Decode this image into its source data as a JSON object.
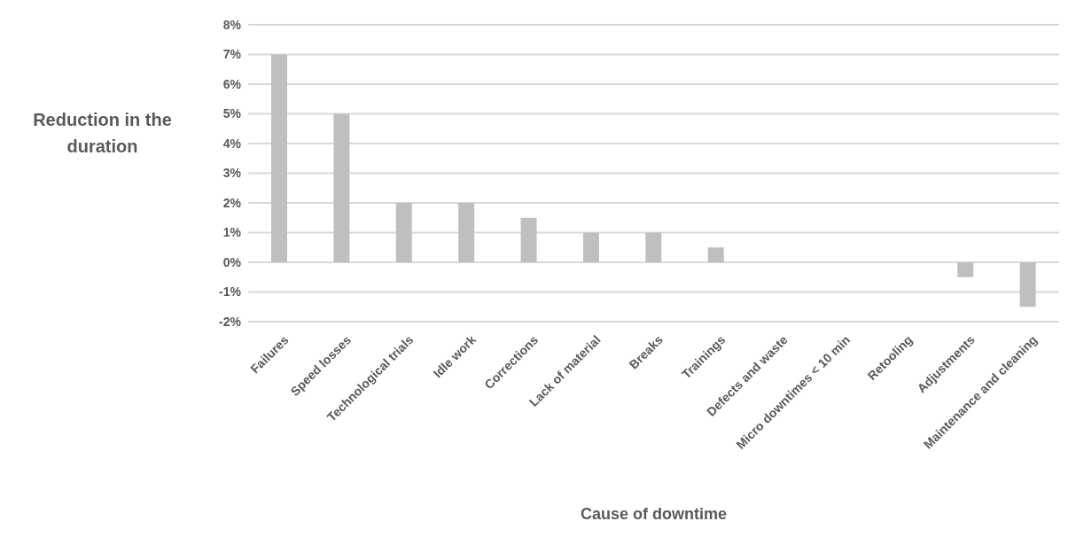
{
  "chart_data": {
    "type": "bar",
    "xlabel": "Cause of downtime",
    "ylabel": "Reduction in the duration",
    "categories": [
      "Failures",
      "Speed losses",
      "Technological trials",
      "Idle work",
      "Corrections",
      "Lack of material",
      "Breaks",
      "Trainings",
      "Defects and waste",
      "Micro downtimes < 10 min",
      "Retooling",
      "Adjustments",
      "Maintenance and cleaning"
    ],
    "values": [
      7,
      5,
      2,
      2,
      1.5,
      1,
      1,
      0.5,
      0,
      0,
      0,
      -0.5,
      -1.5
    ],
    "color": "#bfbfbf",
    "ylim": [
      -2,
      8
    ],
    "yticks": [
      {
        "value": -2,
        "label": "-2%"
      },
      {
        "value": -1,
        "label": "-1%"
      },
      {
        "value": 0,
        "label": "0%"
      },
      {
        "value": 1,
        "label": "1%"
      },
      {
        "value": 2,
        "label": "2%"
      },
      {
        "value": 3,
        "label": "3%"
      },
      {
        "value": 4,
        "label": "4%"
      },
      {
        "value": 5,
        "label": "5%"
      },
      {
        "value": 6,
        "label": "6%"
      },
      {
        "value": 7,
        "label": "7%"
      },
      {
        "value": 8,
        "label": "8%"
      }
    ],
    "grid": true,
    "legend": false
  }
}
